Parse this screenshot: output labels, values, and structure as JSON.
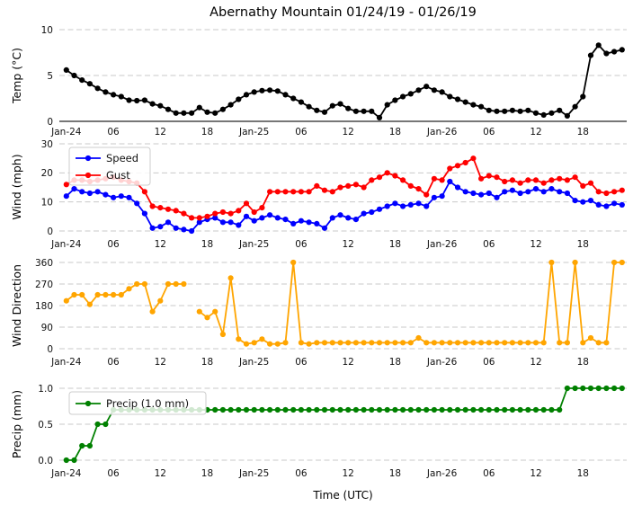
{
  "title": "Abernathy Mountain 01/24/19 - 01/26/19",
  "xlabel": "Time (UTC)",
  "x_tick_hours": [
    0,
    6,
    12,
    18,
    24,
    30,
    36,
    42,
    48,
    54,
    60,
    66
  ],
  "x_tick_labels": [
    "Jan-24",
    "06",
    "12",
    "18",
    "Jan-25",
    "06",
    "12",
    "18",
    "Jan-26",
    "06",
    "12",
    "18"
  ],
  "colors": {
    "temp": "#000000",
    "speed": "#0000ff",
    "gust": "#ff0000",
    "direction": "#ffa500",
    "precip": "#008000",
    "grid": "#c9c9c9",
    "axis": "#262626"
  },
  "chart_data": [
    {
      "name": "temperature",
      "type": "line",
      "ylabel": "Temp (°C)",
      "ylim": [
        0,
        10
      ],
      "yticks": [
        0,
        5,
        10
      ],
      "ytick_labels": [
        "0",
        "5",
        "10"
      ],
      "grid": "dashed-horizontal",
      "baseline_solid": true,
      "series": [
        {
          "name": "Temp",
          "color": "#000000",
          "values": [
            5.6,
            5.0,
            4.5,
            4.1,
            3.6,
            3.2,
            2.9,
            2.7,
            2.3,
            2.25,
            2.3,
            1.9,
            1.7,
            1.3,
            0.9,
            0.9,
            0.9,
            1.5,
            1.0,
            0.9,
            1.3,
            1.8,
            2.4,
            2.9,
            3.2,
            3.35,
            3.4,
            3.3,
            2.9,
            2.5,
            2.1,
            1.6,
            1.2,
            1.0,
            1.7,
            1.9,
            1.4,
            1.1,
            1.1,
            1.1,
            0.4,
            1.8,
            2.3,
            2.7,
            3.0,
            3.4,
            3.8,
            3.4,
            3.2,
            2.7,
            2.4,
            2.1,
            1.8,
            1.6,
            1.2,
            1.1,
            1.1,
            1.2,
            1.1,
            1.2,
            0.9,
            0.7,
            0.9,
            1.2,
            0.6,
            1.6,
            2.7,
            7.2,
            8.3,
            7.4,
            7.6,
            7.8
          ]
        }
      ]
    },
    {
      "name": "wind",
      "type": "line",
      "ylabel": "Wind (mph)",
      "ylim": [
        0,
        30
      ],
      "yticks": [
        0,
        10,
        20,
        30
      ],
      "ytick_labels": [
        "0",
        "10",
        "20",
        "30"
      ],
      "grid": "dashed-horizontal",
      "baseline_solid": false,
      "legend": {
        "position": "upper-left",
        "entries": [
          "Speed",
          "Gust"
        ]
      },
      "series": [
        {
          "name": "Speed",
          "color": "#0000ff",
          "values": [
            12,
            14.5,
            13.5,
            13,
            13.5,
            12.5,
            11.5,
            12,
            11.5,
            9.5,
            6,
            1,
            1.5,
            3,
            1,
            0.5,
            0,
            3,
            4,
            4.5,
            3,
            3,
            2,
            5,
            3.5,
            4.5,
            5.5,
            4.5,
            4,
            2.5,
            3.5,
            3,
            2.5,
            1,
            4.5,
            5.5,
            4.5,
            4,
            6,
            6.5,
            7.5,
            8.5,
            9.5,
            8.5,
            9,
            9.5,
            8.5,
            11.5,
            12,
            17,
            15,
            13.5,
            13,
            12.5,
            13,
            11.5,
            13.5,
            14,
            13,
            13.5,
            14.5,
            13.5,
            14.5,
            13.5,
            13,
            10.5,
            10,
            10.5,
            9,
            8.5,
            9.5,
            9
          ]
        },
        {
          "name": "Gust",
          "color": "#ff0000",
          "values": [
            16,
            17.5,
            17.5,
            17,
            17.5,
            18,
            18.5,
            17.5,
            17,
            16.5,
            13.5,
            8.5,
            8,
            7.5,
            7,
            6,
            4.5,
            4.5,
            5,
            6,
            6.5,
            6,
            7,
            9.5,
            6.5,
            8,
            13.5,
            13.5,
            13.5,
            13.5,
            13.5,
            13.5,
            15.5,
            14,
            13.5,
            15,
            15.5,
            16,
            15,
            17.5,
            18.5,
            20,
            19,
            17.5,
            15.5,
            14.5,
            12.5,
            18,
            17.5,
            21.5,
            22.5,
            23.5,
            25,
            18,
            19,
            18.5,
            17,
            17.5,
            16.5,
            17.5,
            17.5,
            16.5,
            17.5,
            18,
            17.5,
            18.5,
            15.5,
            16.5,
            13.5,
            13,
            13.5,
            14
          ]
        }
      ]
    },
    {
      "name": "wind_direction",
      "type": "line",
      "ylabel": "Wind Direction",
      "ylim": [
        0,
        360
      ],
      "yticks": [
        0,
        90,
        180,
        270,
        360
      ],
      "ytick_labels": [
        "0",
        "90",
        "180",
        "270",
        "360"
      ],
      "grid": "dashed-horizontal",
      "baseline_solid": false,
      "series": [
        {
          "name": "Direction",
          "color": "#ffa500",
          "values": [
            200,
            225,
            225,
            185,
            225,
            225,
            225,
            225,
            250,
            270,
            270,
            155,
            200,
            270,
            270,
            270,
            null,
            155,
            130,
            155,
            60,
            295,
            40,
            20,
            25,
            40,
            20,
            20,
            25,
            360,
            25,
            20,
            25,
            25,
            25,
            25,
            25,
            25,
            25,
            25,
            25,
            25,
            25,
            25,
            25,
            45,
            25,
            25,
            25,
            25,
            25,
            25,
            25,
            25,
            25,
            25,
            25,
            25,
            25,
            25,
            25,
            25,
            360,
            25,
            25,
            360,
            25,
            45,
            25,
            25,
            360,
            360
          ]
        }
      ]
    },
    {
      "name": "precip",
      "type": "line",
      "ylabel": "Precip (mm)",
      "ylim": [
        0,
        1.0
      ],
      "yticks": [
        0,
        0.5,
        1.0
      ],
      "ytick_labels": [
        "0.0",
        "0.5",
        "1.0"
      ],
      "grid": "dashed-horizontal",
      "baseline_solid": false,
      "legend": {
        "position": "upper-left",
        "entries": [
          "Precip (1.0 mm)"
        ]
      },
      "series": [
        {
          "name": "Precip (1.0 mm)",
          "color": "#008000",
          "values": [
            0.0,
            0.0,
            0.2,
            0.2,
            0.5,
            0.5,
            0.7,
            0.7,
            0.7,
            0.7,
            0.7,
            0.7,
            0.7,
            0.7,
            0.7,
            0.7,
            0.7,
            0.7,
            0.7,
            0.7,
            0.7,
            0.7,
            0.7,
            0.7,
            0.7,
            0.7,
            0.7,
            0.7,
            0.7,
            0.7,
            0.7,
            0.7,
            0.7,
            0.7,
            0.7,
            0.7,
            0.7,
            0.7,
            0.7,
            0.7,
            0.7,
            0.7,
            0.7,
            0.7,
            0.7,
            0.7,
            0.7,
            0.7,
            0.7,
            0.7,
            0.7,
            0.7,
            0.7,
            0.7,
            0.7,
            0.7,
            0.7,
            0.7,
            0.7,
            0.7,
            0.7,
            0.7,
            0.7,
            0.7,
            1.0,
            1.0,
            1.0,
            1.0,
            1.0,
            1.0,
            1.0,
            1.0
          ]
        }
      ]
    }
  ]
}
